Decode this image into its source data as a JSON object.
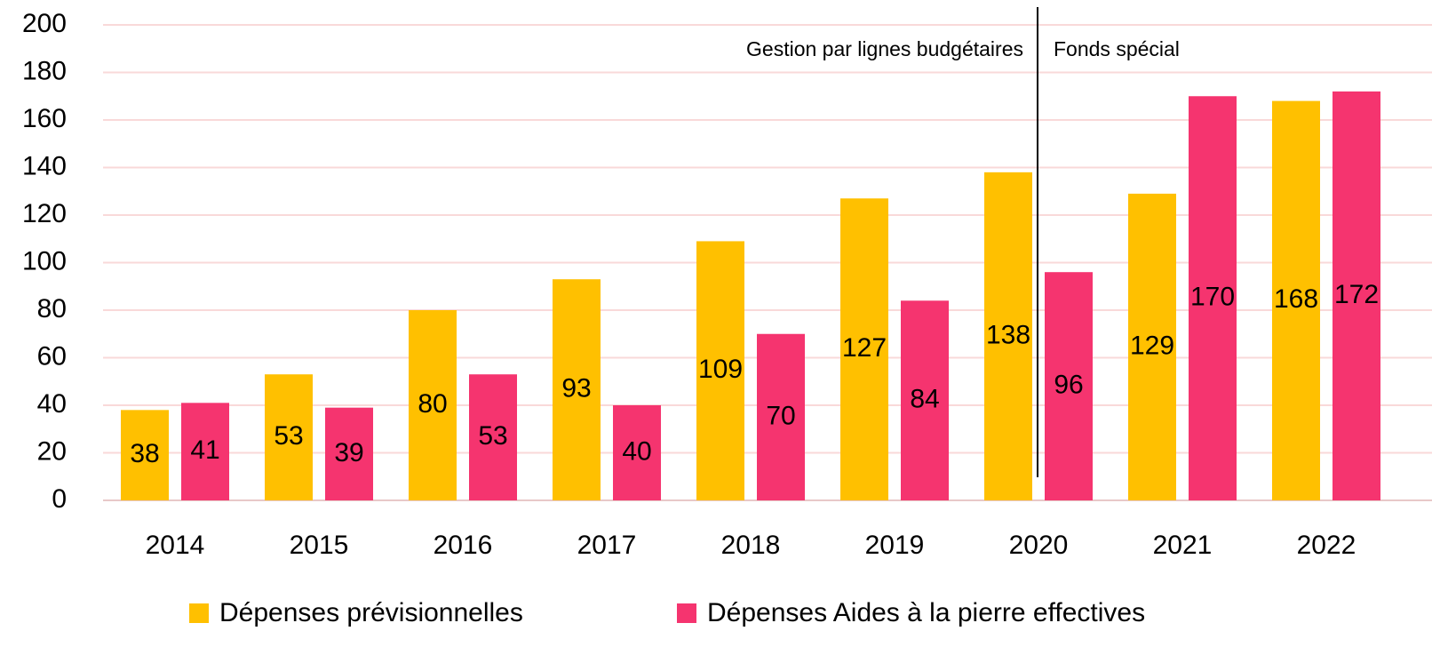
{
  "chart_data": {
    "type": "bar",
    "categories": [
      "2014",
      "2015",
      "2016",
      "2017",
      "2018",
      "2019",
      "2020",
      "2021",
      "2022"
    ],
    "series": [
      {
        "name": "Dépenses prévisionnelles",
        "color": "#FFC000",
        "values": [
          38,
          53,
          80,
          93,
          109,
          127,
          138,
          129,
          168
        ]
      },
      {
        "name": "Dépenses Aides à la pierre effectives",
        "color": "#F5346F",
        "values": [
          41,
          39,
          53,
          40,
          70,
          84,
          96,
          170,
          172
        ]
      }
    ],
    "ylim": [
      0,
      200
    ],
    "yticks": [
      0,
      20,
      40,
      60,
      80,
      100,
      120,
      140,
      160,
      180,
      200
    ],
    "grid": true,
    "annotations": [
      "Gestion par lignes budgétaires",
      "Fonds spécial"
    ],
    "legend": "bottom"
  }
}
